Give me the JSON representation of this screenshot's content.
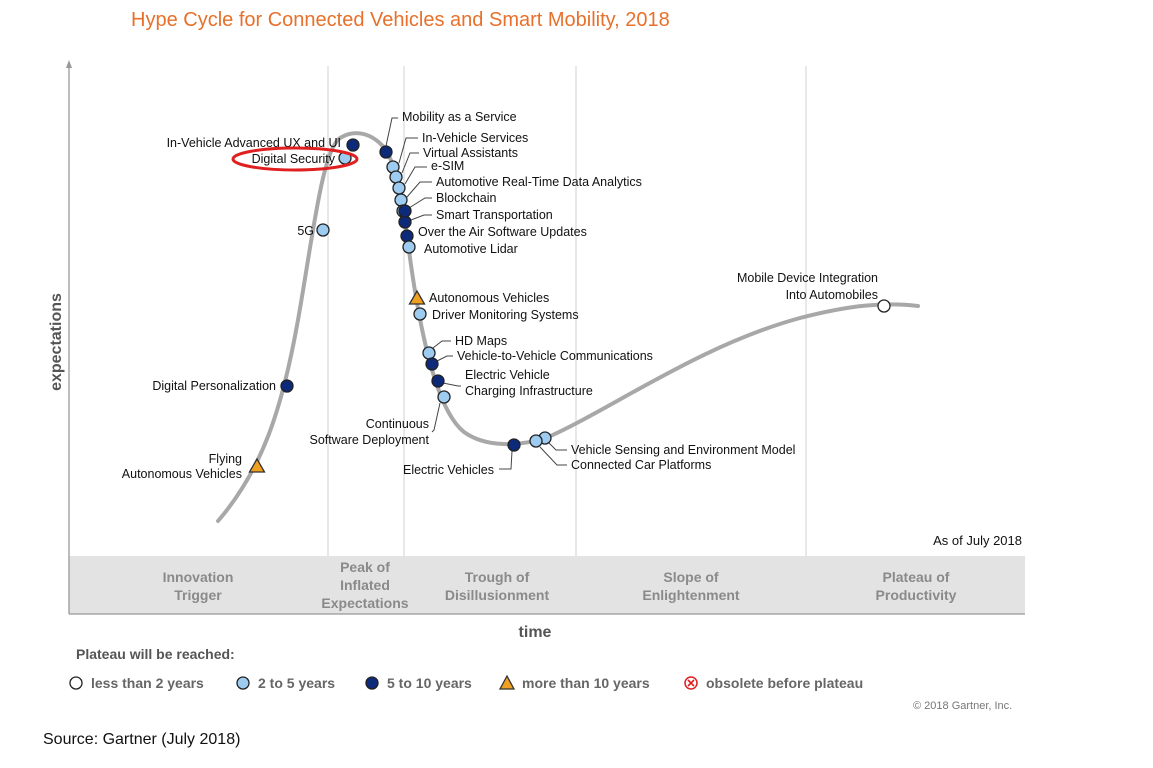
{
  "title": "Hype Cycle for Connected Vehicles and Smart Mobility, 2018",
  "plateau_title": "Plateau will be reached:",
  "legend": [
    {
      "key": "lt2",
      "label": "less than 2 years",
      "color": "#ffffff",
      "shape": "circle"
    },
    {
      "key": "2to5",
      "label": "2 to 5 years",
      "color": "#9ecbf0",
      "shape": "circle"
    },
    {
      "key": "5to10",
      "label": "5 to 10 years",
      "color": "#0d2a7a",
      "shape": "circle"
    },
    {
      "key": "gt10",
      "label": "more than 10 years",
      "color": "#f0a020",
      "shape": "triangle"
    },
    {
      "key": "obsolete",
      "label": "obsolete before plateau",
      "color": "#e02020",
      "shape": "cross"
    }
  ],
  "copyright": "© 2018 Gartner, Inc.",
  "source": "Source: Gartner (July 2018)",
  "chart_data": {
    "type": "hype-cycle",
    "xlabel": "time",
    "ylabel": "expectations",
    "as_of": "As of July 2018",
    "phases": [
      {
        "lines": [
          "Innovation",
          "Trigger"
        ]
      },
      {
        "lines": [
          "Peak of",
          "Inflated",
          "Expectations"
        ]
      },
      {
        "lines": [
          "Trough of",
          "Disillusionment"
        ]
      },
      {
        "lines": [
          "Slope of",
          "Enlightenment"
        ]
      },
      {
        "lines": [
          "Plateau of",
          "Productivity"
        ]
      }
    ],
    "highlighted": "Digital Security",
    "highlight_color": "#e02020",
    "technologies": [
      {
        "name": "Flying Autonomous Vehicles",
        "label_lines": [
          "Flying",
          "Autonomous Vehicles"
        ],
        "category": "gt10"
      },
      {
        "name": "Digital Personalization",
        "label_lines": [
          "Digital Personalization"
        ],
        "category": "5to10"
      },
      {
        "name": "5G",
        "label_lines": [
          "5G"
        ],
        "category": "2to5"
      },
      {
        "name": "Digital Security",
        "label_lines": [
          "Digital Security"
        ],
        "category": "2to5"
      },
      {
        "name": "In-Vehicle Advanced UX and UI",
        "label_lines": [
          "In-Vehicle Advanced UX and UI"
        ],
        "category": "5to10"
      },
      {
        "name": "Mobility as a Service",
        "label_lines": [
          "Mobility as a Service"
        ],
        "category": "5to10"
      },
      {
        "name": "In-Vehicle Services",
        "label_lines": [
          "In-Vehicle Services"
        ],
        "category": "2to5"
      },
      {
        "name": "Virtual Assistants",
        "label_lines": [
          "Virtual Assistants"
        ],
        "category": "2to5"
      },
      {
        "name": "e-SIM",
        "label_lines": [
          "e-SIM"
        ],
        "category": "2to5"
      },
      {
        "name": "Automotive Real-Time Data Analytics",
        "label_lines": [
          "Automotive Real-Time Data Analytics"
        ],
        "category": "2to5"
      },
      {
        "name": "Blockchain",
        "label_lines": [
          "Blockchain"
        ],
        "category": "2to5"
      },
      {
        "name": "Smart Transportation",
        "label_lines": [
          "Smart Transportation"
        ],
        "category": "5to10"
      },
      {
        "name": "Over the Air Software Updates",
        "label_lines": [
          "Over the Air Software Updates"
        ],
        "category": "5to10"
      },
      {
        "name": "Automotive Lidar",
        "label_lines": [
          "Automotive Lidar"
        ],
        "category": "2to5"
      },
      {
        "name": "Automotive Lidar (second marker)",
        "label_lines": [],
        "category": "5to10"
      },
      {
        "name": "Autonomous Vehicles",
        "label_lines": [
          "Autonomous Vehicles"
        ],
        "category": "gt10"
      },
      {
        "name": "Driver Monitoring Systems",
        "label_lines": [
          "Driver Monitoring Systems"
        ],
        "category": "2to5"
      },
      {
        "name": "HD Maps",
        "label_lines": [
          "HD Maps"
        ],
        "category": "2to5"
      },
      {
        "name": "Vehicle-to-Vehicle Communications",
        "label_lines": [
          "Vehicle-to-Vehicle Communications"
        ],
        "category": "5to10"
      },
      {
        "name": "Electric Vehicle Charging Infrastructure",
        "label_lines": [
          "Electric Vehicle",
          "Charging Infrastructure"
        ],
        "category": "5to10"
      },
      {
        "name": "Continuous Software Deployment",
        "label_lines": [
          "Continuous",
          "Software Deployment"
        ],
        "category": "2to5"
      },
      {
        "name": "Electric Vehicles",
        "label_lines": [
          "Electric Vehicles"
        ],
        "category": "5to10"
      },
      {
        "name": "Vehicle Sensing and Environment Model",
        "label_lines": [
          "Vehicle Sensing and Environment Model"
        ],
        "category": "2to5"
      },
      {
        "name": "Connected Car Platforms",
        "label_lines": [
          "Connected Car Platforms"
        ],
        "category": "2to5"
      },
      {
        "name": "Mobile Device Integration Into Automobiles",
        "label_lines": [
          "Mobile Device Integration",
          "Into Automobiles"
        ],
        "category": "lt2"
      }
    ]
  }
}
